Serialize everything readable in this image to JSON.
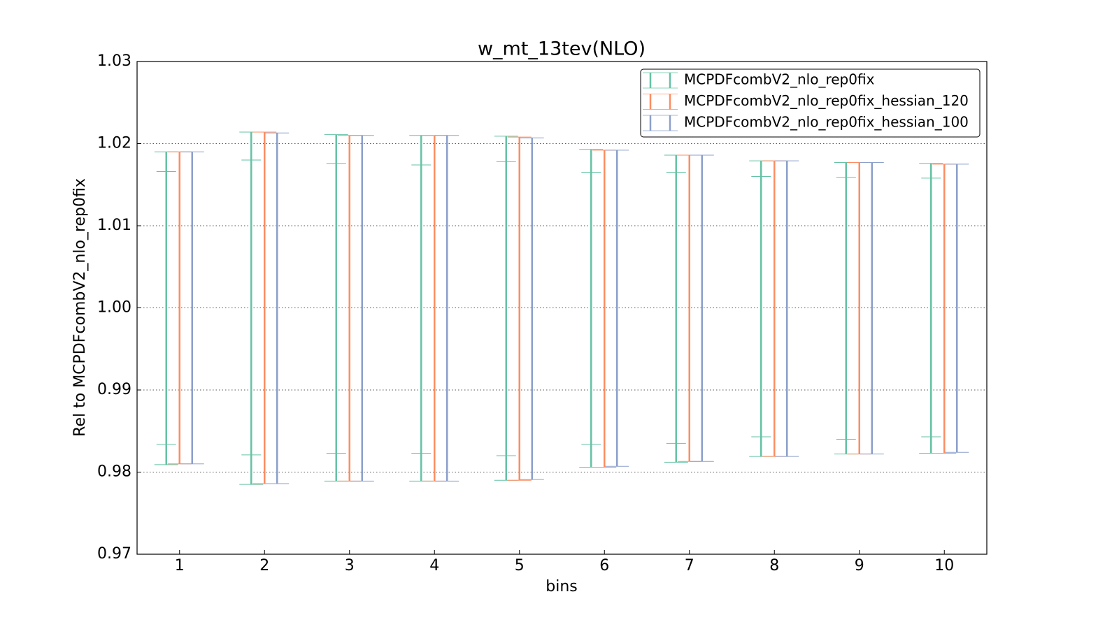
{
  "chart_data": {
    "type": "errorbar",
    "title": "w_mt_13tev(NLO)",
    "xlabel": "bins",
    "ylabel": "Rel to MCPDFcombV2_nlo_rep0fix",
    "x": [
      1,
      2,
      3,
      4,
      5,
      6,
      7,
      8,
      9,
      10
    ],
    "xlim": [
      0.5,
      10.5
    ],
    "xticks": [
      1,
      2,
      3,
      4,
      5,
      6,
      7,
      8,
      9,
      10
    ],
    "ylim": [
      0.97,
      1.03
    ],
    "yticks": [
      0.97,
      0.98,
      0.99,
      {
        "value": 1,
        "label": "1.00"
      },
      1.01,
      1.02,
      1.03
    ],
    "grid": true,
    "legend": "upper right",
    "series": [
      {
        "name": "MCPDFcombV2_nlo_rep0fix",
        "color": "#66c2a5",
        "low": [
          0.9809,
          0.9785,
          0.9789,
          0.9789,
          0.979,
          0.9806,
          0.9812,
          0.9819,
          0.9822,
          0.9823
        ],
        "high": [
          1.019,
          1.0214,
          1.0211,
          1.021,
          1.0209,
          1.0193,
          1.0186,
          1.0179,
          1.0177,
          1.0176
        ],
        "inner_low": [
          0.9834,
          0.9821,
          0.9823,
          0.9823,
          0.982,
          0.9834,
          0.9835,
          0.9843,
          0.984,
          0.9843
        ],
        "inner_high": [
          1.0166,
          1.018,
          1.0176,
          1.0174,
          1.0178,
          1.0165,
          1.0165,
          1.016,
          1.0159,
          1.0158
        ]
      },
      {
        "name": "MCPDFcombV2_nlo_rep0fix_hessian_120",
        "color": "#fc8d62",
        "low": [
          0.981,
          0.9786,
          0.9789,
          0.9789,
          0.979,
          0.9806,
          0.9813,
          0.9819,
          0.9822,
          0.9823
        ],
        "high": [
          1.019,
          1.0214,
          1.021,
          1.021,
          1.0208,
          1.0192,
          1.0186,
          1.0179,
          1.0177,
          1.0175
        ]
      },
      {
        "name": "MCPDFcombV2_nlo_rep0fix_hessian_100",
        "color": "#8da0cb",
        "low": [
          0.981,
          0.9786,
          0.9789,
          0.9789,
          0.9791,
          0.9807,
          0.9813,
          0.9819,
          0.9822,
          0.9824
        ],
        "high": [
          1.019,
          1.0213,
          1.021,
          1.021,
          1.0207,
          1.0192,
          1.0186,
          1.0179,
          1.0177,
          1.0175
        ]
      }
    ]
  }
}
